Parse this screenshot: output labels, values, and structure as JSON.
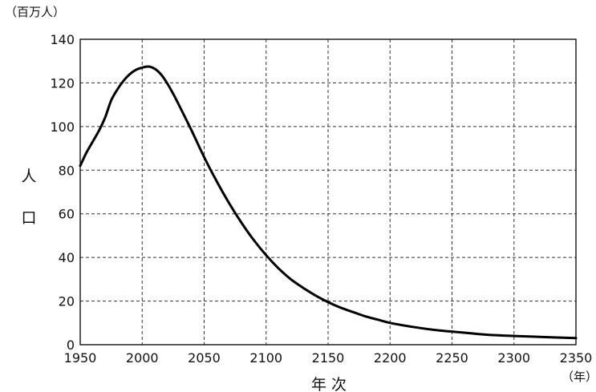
{
  "chart_data": {
    "type": "line",
    "y_unit": "（百万人）",
    "x_unit": "（年）",
    "ylabel": [
      "人",
      "口"
    ],
    "xlabel": "年 次",
    "xlim": [
      1950,
      2350
    ],
    "ylim": [
      0,
      140
    ],
    "x_ticks": [
      "1950",
      "2000",
      "2050",
      "2100",
      "2150",
      "2200",
      "2250",
      "2300",
      "2350"
    ],
    "y_ticks": [
      "0",
      "20",
      "40",
      "60",
      "80",
      "100",
      "120",
      "140"
    ],
    "grid": true,
    "series": [
      {
        "x": [
          1950,
          1955,
          1960,
          1965,
          1970,
          1975,
          1980,
          1985,
          1990,
          1995,
          2000,
          2005,
          2010,
          2015,
          2020,
          2025,
          2030,
          2040,
          2050,
          2060,
          2070,
          2080,
          2090,
          2100,
          2110,
          2120,
          2130,
          2140,
          2150,
          2160,
          2170,
          2180,
          2190,
          2200,
          2220,
          2240,
          2260,
          2280,
          2300,
          2325,
          2350
        ],
        "y": [
          82,
          88,
          93,
          98,
          104,
          112,
          117,
          121,
          124,
          126,
          127,
          127.5,
          126.5,
          124,
          120,
          115,
          109.5,
          98,
          86,
          75,
          65,
          56,
          48,
          41,
          35,
          30,
          26,
          22.5,
          19.5,
          17,
          15,
          13,
          11.5,
          10,
          8,
          6.5,
          5.5,
          4.5,
          4,
          3.5,
          3
        ]
      }
    ]
  }
}
